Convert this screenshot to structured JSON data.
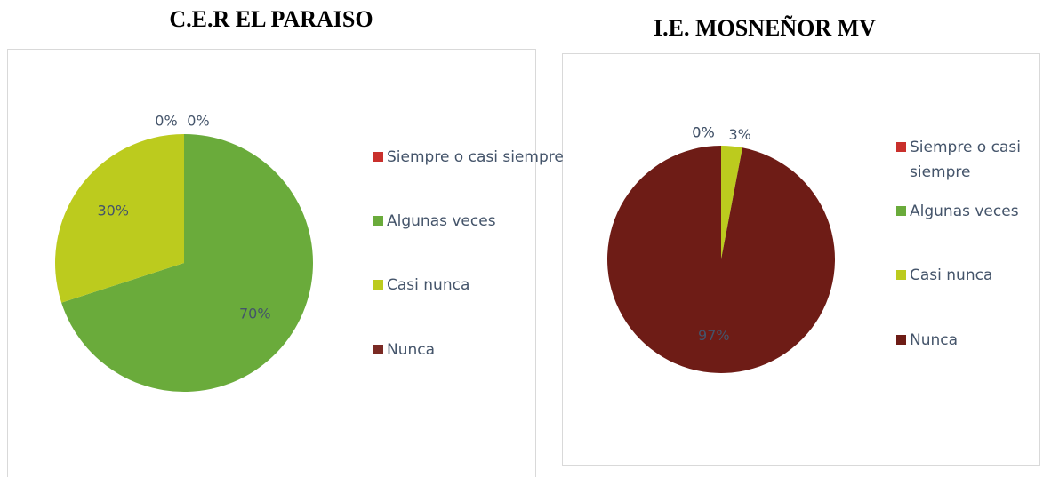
{
  "chart_data": [
    {
      "type": "pie",
      "title": "C.E.R EL PARAISO",
      "categories": [
        "Siempre o casi siempre",
        "Algunas veces",
        "Casi nunca",
        "Nunca"
      ],
      "values": [
        0,
        70,
        30,
        0
      ],
      "value_labels": [
        "0%",
        "70%",
        "30%",
        "0%"
      ],
      "colors": [
        "#c9302c",
        "#6aab3b",
        "#bccb1e",
        "#7a2a24"
      ]
    },
    {
      "type": "pie",
      "title": "I.E. MOSNEÑOR MV",
      "categories": [
        "Siempre o casi siempre",
        "Algunas veces",
        "Casi nunca",
        "Nunca"
      ],
      "values": [
        0,
        0,
        3,
        97
      ],
      "value_labels": [
        "0%",
        "0%",
        "3%",
        "97%"
      ],
      "colors": [
        "#c9302c",
        "#6aab3b",
        "#bccb1e",
        "#6e1c16"
      ]
    }
  ]
}
